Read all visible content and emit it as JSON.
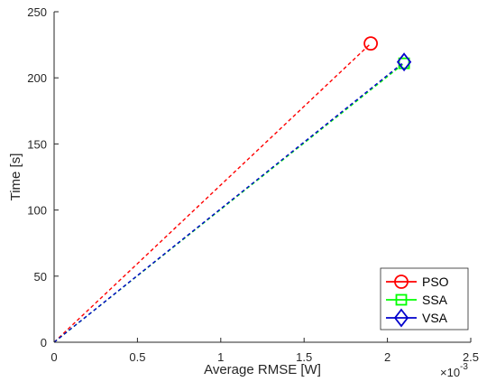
{
  "chart_data": {
    "type": "line",
    "title": "",
    "xlabel": "Average RMSE [W]",
    "ylabel": "Time [s]",
    "x_exponent_label": "×10",
    "x_exponent_power": "-3",
    "xlim": [
      0,
      2.5
    ],
    "ylim": [
      0,
      250
    ],
    "xticks": [
      "0",
      "0.5",
      "1",
      "1.5",
      "2",
      "2.5"
    ],
    "xtick_values": [
      0,
      0.5,
      1,
      1.5,
      2,
      2.5
    ],
    "yticks": [
      "0",
      "50",
      "100",
      "150",
      "200",
      "250"
    ],
    "ytick_values": [
      0,
      50,
      100,
      150,
      200,
      250
    ],
    "grid": false,
    "legend_position": "bottom-right",
    "series": [
      {
        "name": "PSO",
        "color": "#ff0000",
        "marker": "circle",
        "x": [
          0,
          1.9
        ],
        "y": [
          0,
          226
        ]
      },
      {
        "name": "SSA",
        "color": "#00ff00",
        "marker": "square",
        "x": [
          0,
          2.1
        ],
        "y": [
          0,
          211
        ]
      },
      {
        "name": "VSA",
        "color": "#0000cc",
        "marker": "diamond",
        "x": [
          0,
          2.1
        ],
        "y": [
          0,
          212
        ]
      }
    ]
  }
}
